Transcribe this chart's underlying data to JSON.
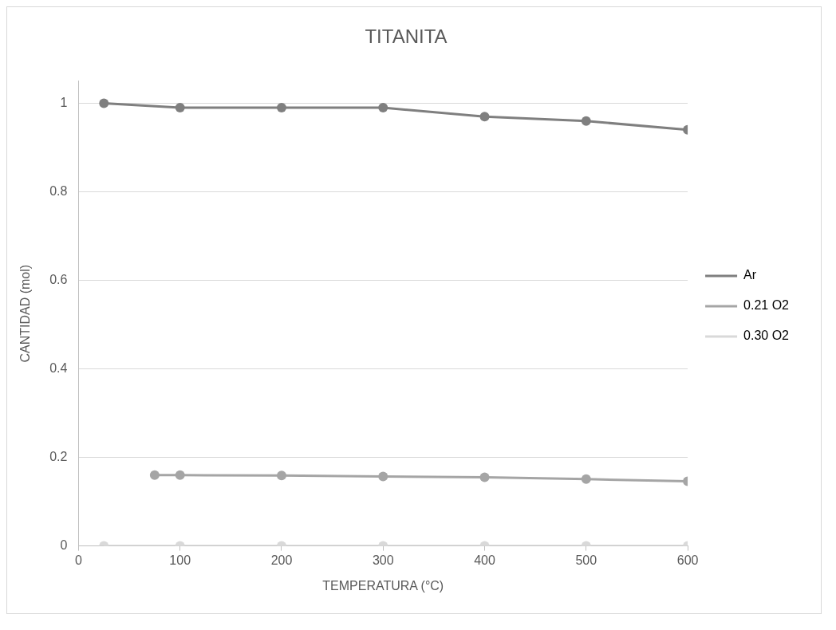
{
  "chart_data": {
    "type": "line",
    "title": "TITANITA",
    "xlabel": "TEMPERATURA (°C)",
    "ylabel": "CANTIDAD (mol)",
    "xlim": [
      0,
      600
    ],
    "xticks": [
      0,
      100,
      200,
      300,
      400,
      500,
      600
    ],
    "ylim": [
      0,
      1.05
    ],
    "yticks": [
      0,
      0.2,
      0.4,
      0.6,
      0.8,
      1
    ],
    "grid": "y",
    "legend": "right",
    "marker": "circle",
    "line_style": "solid",
    "series": [
      {
        "name": "Ar",
        "color": "#7f7f7f",
        "x": [
          25,
          100,
          200,
          300,
          400,
          500,
          600
        ],
        "values": [
          1,
          0.99,
          0.99,
          0.99,
          0.97,
          0.96,
          0.94
        ]
      },
      {
        "name": "0.21 O2",
        "color": "#a5a5a5",
        "x": [
          75,
          100,
          200,
          300,
          400,
          500,
          600
        ],
        "values": [
          0.16,
          0.16,
          0.159,
          0.157,
          0.155,
          0.151,
          0.146
        ]
      },
      {
        "name": "0.30 O2",
        "color": "#d9d9d9",
        "x": [
          25,
          100,
          200,
          300,
          400,
          500,
          600
        ],
        "values": [
          0,
          0,
          0,
          0,
          0,
          0,
          0
        ]
      }
    ]
  }
}
